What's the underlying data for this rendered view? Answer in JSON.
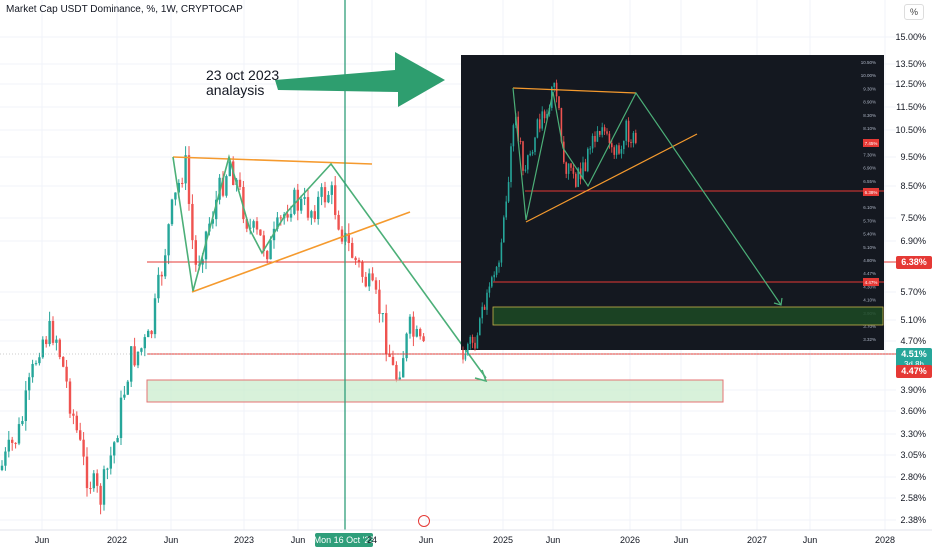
{
  "chart_title": "Market Cap USDT Dominance, %, 1W, CRYPTOCAP",
  "percent_button": "%",
  "annotation": {
    "line1": "23 oct 2023",
    "line2": "analaysis"
  },
  "cursor_date": "Mon 16 Oct '23",
  "colors": {
    "up": "#26a69a",
    "down": "#ef5350",
    "trend": "#f59a2e",
    "arrow": "#2f9e7a",
    "hline": "#e53935"
  },
  "chart_data": {
    "type": "candlestick",
    "title": "Market Cap USDT Dominance, %, 1W, CRYPTOCAP",
    "x_ticks": [
      "Jun",
      "2022",
      "Jun",
      "2023",
      "Jun",
      "Mon 16 Oct '23",
      "24",
      "Jun",
      "2025",
      "Jun",
      "2026",
      "Jun",
      "2027",
      "Jun",
      "2028"
    ],
    "y_ticks": [
      "15.00%",
      "13.50%",
      "12.50%",
      "11.50%",
      "10.50%",
      "9.50%",
      "8.50%",
      "7.50%",
      "6.90%",
      "6.38%",
      "5.70%",
      "5.10%",
      "4.70%",
      "4.51%",
      "4.47%",
      "3.90%",
      "3.60%",
      "3.30%",
      "3.05%",
      "2.80%",
      "2.58%",
      "2.38%"
    ],
    "price_labels": [
      {
        "value": "6.38%",
        "color": "#e53935"
      },
      {
        "value": "4.51%",
        "sub": "3d 8h",
        "color": "#26a69a"
      },
      {
        "value": "4.47%",
        "color": "#e53935"
      }
    ],
    "horizontal_levels": [
      6.38,
      4.47
    ],
    "support_zone": [
      3.75,
      4.05
    ],
    "inset_y_ticks": [
      "10.50%",
      "10.00%",
      "9.30%",
      "8.90%",
      "8.30%",
      "8.10%",
      "7.45%",
      "7.30%",
      "6.90%",
      "6.55%",
      "6.38%",
      "6.10%",
      "5.70%",
      "5.40%",
      "5.10%",
      "4.80%",
      "4.47%",
      "4.30%",
      "4.10%",
      "3.90%",
      "3.70%",
      "3.32%"
    ],
    "inset_price_labels": [
      "7.45%",
      "6.38%",
      "4.47%"
    ],
    "log_scale": true
  }
}
